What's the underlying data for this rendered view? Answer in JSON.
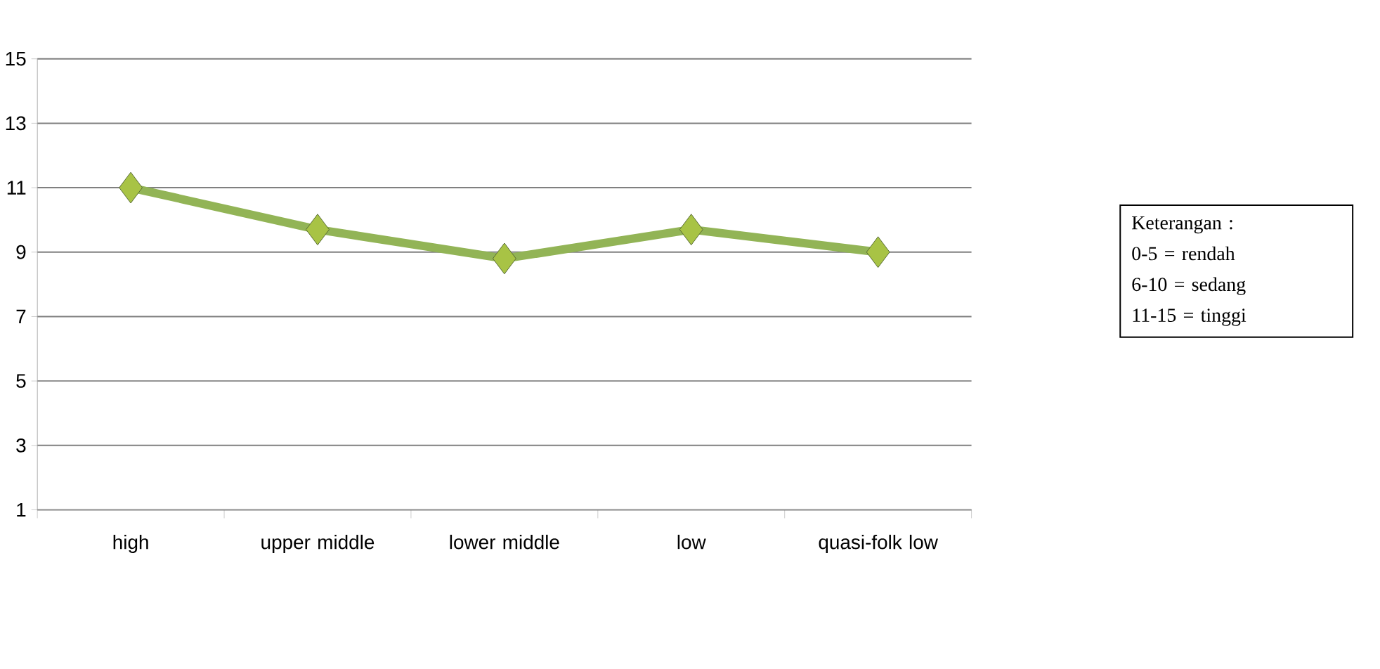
{
  "chart_data": {
    "type": "line",
    "categories": [
      "high",
      "upper middle",
      "lower middle",
      "low",
      "quasi-folk low"
    ],
    "values": [
      11,
      9.7,
      8.8,
      9.7,
      9.0
    ],
    "color": "#92b456",
    "marker": "diamond",
    "ylim": [
      1,
      15
    ],
    "yticks": [
      1,
      3,
      5,
      7,
      9,
      11,
      13,
      15
    ],
    "grid": "y",
    "annotations": [
      "Keterangan :",
      "0-5 = rendah",
      "6-10 = sedang",
      "11-15 = tinggi"
    ]
  }
}
